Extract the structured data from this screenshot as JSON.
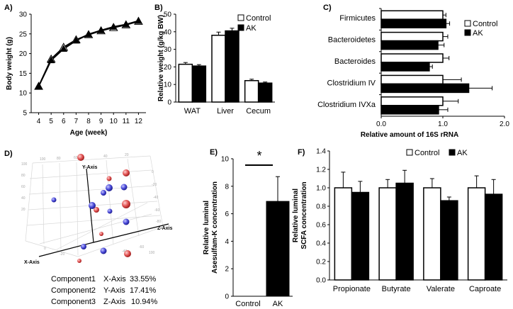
{
  "panel_labels": [
    "A)",
    "B)",
    "C)",
    "D)",
    "E)",
    "F)"
  ],
  "chart_data": [
    {
      "panel": "A)",
      "type": "line",
      "xlabel": "Age (week)",
      "ylabel": "Body weight (g)",
      "x": [
        4,
        5,
        6,
        7,
        8,
        9,
        10,
        11,
        12
      ],
      "xlim": [
        3.4,
        12.6
      ],
      "ylim": [
        5,
        30
      ],
      "yticks": [
        5,
        10,
        15,
        20,
        25,
        30
      ],
      "series": [
        {
          "name": "Control",
          "marker": "open-triangle",
          "values": [
            11.7,
            18.6,
            21.6,
            23.5,
            24.8,
            25.8,
            26.6,
            27.3,
            28.2
          ]
        },
        {
          "name": "AK",
          "marker": "filled-triangle",
          "values": [
            11.7,
            18.3,
            21.2,
            23.3,
            24.9,
            25.9,
            26.8,
            27.4,
            28.3
          ]
        }
      ]
    },
    {
      "panel": "B)",
      "type": "bar",
      "ylabel": "Relative weight (g/kg BW)",
      "categories": [
        "WAT",
        "Liver",
        "Cecum"
      ],
      "ylim": [
        0,
        50
      ],
      "yticks": [
        0,
        10,
        20,
        30,
        40,
        50
      ],
      "legend": [
        "Control",
        "AK"
      ],
      "series": [
        {
          "name": "Control",
          "values": [
            21.5,
            38.0,
            12.2
          ],
          "errors": [
            1.0,
            1.8,
            0.8
          ]
        },
        {
          "name": "AK",
          "values": [
            20.5,
            40.5,
            10.8
          ],
          "errors": [
            0.8,
            1.5,
            0.6
          ]
        }
      ]
    },
    {
      "panel": "C)",
      "type": "bar",
      "orientation": "horizontal",
      "xlabel": "Relative amount of 16S rRNA",
      "categories": [
        "Firmicutes",
        "Bacteroidetes",
        "Bacteroides",
        "Clostridium IV",
        "Clostridium IVXa"
      ],
      "xlim": [
        0,
        2.0
      ],
      "xticks": [
        "0.0",
        "1.0",
        "2.0"
      ],
      "xtick_values": [
        0,
        1,
        2
      ],
      "legend": [
        "Control",
        "AK"
      ],
      "series": [
        {
          "name": "Control",
          "values": [
            1.0,
            1.0,
            1.0,
            1.0,
            1.0
          ],
          "errors": [
            0.05,
            0.08,
            0.1,
            0.3,
            0.25
          ]
        },
        {
          "name": "AK",
          "values": [
            1.05,
            0.92,
            0.78,
            1.42,
            0.93
          ],
          "errors": [
            0.06,
            0.1,
            0.05,
            0.38,
            0.15
          ]
        }
      ]
    },
    {
      "panel": "D)",
      "type": "scatter",
      "subtype": "3d-pca",
      "axis_labels": [
        "X-Axis",
        "Y-Axis",
        "Z-Axis"
      ],
      "tick_labels": [
        "100",
        "80",
        "60",
        "40",
        "20",
        "0",
        "-20",
        "-40",
        "-60",
        "-80",
        "100",
        "80",
        "60",
        "40",
        "20",
        "0",
        "-20",
        "-40",
        "-60",
        "100"
      ],
      "series": [
        {
          "name": "red",
          "color": "#e05050",
          "count": 8
        },
        {
          "name": "blue",
          "color": "#4848d8",
          "count": 9
        }
      ],
      "components": [
        {
          "label": "Component1",
          "axis": "X-Axis",
          "value": "33.55%"
        },
        {
          "label": "Component2",
          "axis": "Y-Axis",
          "value": "17.41%"
        },
        {
          "label": "Component3",
          "axis": "Z-Axis",
          "value": "10.94%"
        }
      ]
    },
    {
      "panel": "E)",
      "type": "bar",
      "ylabel_lines": [
        "Relative luminal",
        "Asesulfam-K concentration"
      ],
      "categories": [
        "Control",
        "AK"
      ],
      "values": [
        0,
        6.9
      ],
      "errors": [
        0,
        1.8
      ],
      "ylim": [
        0,
        10
      ],
      "yticks": [
        0,
        2,
        4,
        6,
        8,
        10
      ],
      "annotation": "*"
    },
    {
      "panel": "F)",
      "type": "bar",
      "ylabel_lines": [
        "Relative luminal",
        "SCFA concentration"
      ],
      "categories": [
        "Propionate",
        "Butyrate",
        "Valerate",
        "Caproate"
      ],
      "ylim": [
        0,
        1.4
      ],
      "yticks": [
        "0.0",
        "0.2",
        "0.4",
        "0.6",
        "0.8",
        "1.0",
        "1.2",
        "1.4"
      ],
      "ytick_values": [
        0,
        0.2,
        0.4,
        0.6,
        0.8,
        1.0,
        1.2,
        1.4
      ],
      "legend": [
        "Control",
        "AK"
      ],
      "series": [
        {
          "name": "Control",
          "values": [
            1.0,
            1.0,
            1.0,
            1.0
          ],
          "errors": [
            0.17,
            0.09,
            0.1,
            0.13
          ]
        },
        {
          "name": "AK",
          "values": [
            0.95,
            1.05,
            0.86,
            0.93
          ],
          "errors": [
            0.12,
            0.14,
            0.04,
            0.16
          ]
        }
      ]
    }
  ]
}
